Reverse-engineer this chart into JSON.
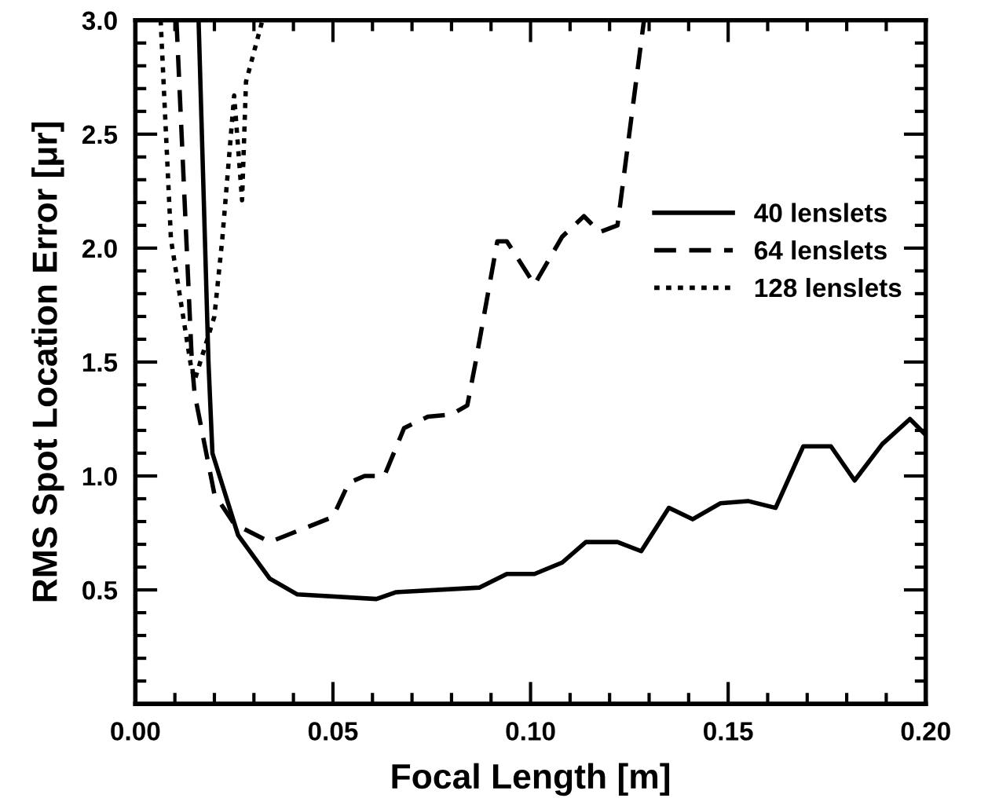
{
  "chart_data": {
    "type": "line",
    "xlabel": "Focal Length [m]",
    "ylabel": "RMS Spot Location Error [μr]",
    "xlim": [
      0.0,
      0.2
    ],
    "ylim": [
      0.0,
      3.0
    ],
    "xticks": [
      {
        "value": 0.0,
        "label": "0.00"
      },
      {
        "value": 0.05,
        "label": "0.05"
      },
      {
        "value": 0.1,
        "label": "0.10"
      },
      {
        "value": 0.15,
        "label": "0.15"
      },
      {
        "value": 0.2,
        "label": "0.20"
      }
    ],
    "yticks": [
      {
        "value": 0.0,
        "label": null
      },
      {
        "value": 0.5,
        "label": "0.5"
      },
      {
        "value": 1.0,
        "label": "1.0"
      },
      {
        "value": 1.5,
        "label": "1.5"
      },
      {
        "value": 2.0,
        "label": "2.0"
      },
      {
        "value": 2.5,
        "label": "2.5"
      },
      {
        "value": 3.0,
        "label": "3.0"
      }
    ],
    "grid": false,
    "legend": "right",
    "marker": "none",
    "series": [
      {
        "name": "40 lenslets",
        "color": "#000000",
        "line_style": "solid",
        "x": [
          0.016,
          0.0185,
          0.0195,
          0.026,
          0.034,
          0.041,
          0.061,
          0.066,
          0.087,
          0.094,
          0.101,
          0.108,
          0.114,
          0.122,
          0.128,
          0.135,
          0.141,
          0.148,
          0.155,
          0.162,
          0.169,
          0.176,
          0.182,
          0.189,
          0.196,
          0.2
        ],
        "values": [
          3.0,
          1.5,
          1.1,
          0.74,
          0.55,
          0.48,
          0.46,
          0.49,
          0.51,
          0.57,
          0.57,
          0.62,
          0.71,
          0.71,
          0.67,
          0.86,
          0.81,
          0.88,
          0.89,
          0.86,
          1.13,
          1.13,
          0.98,
          1.14,
          1.25,
          1.18
        ]
      },
      {
        "name": "64 lenslets",
        "color": "#000000",
        "line_style": "dashed",
        "x": [
          0.0104,
          0.0143,
          0.015,
          0.02,
          0.025,
          0.034,
          0.05,
          0.054,
          0.058,
          0.063,
          0.068,
          0.074,
          0.08,
          0.084,
          0.086,
          0.0916,
          0.094,
          0.101,
          0.108,
          0.1135,
          0.1175,
          0.122,
          0.1287
        ],
        "values": [
          3.0,
          1.5,
          1.36,
          0.92,
          0.79,
          0.71,
          0.82,
          0.97,
          1.0,
          1.0,
          1.21,
          1.26,
          1.27,
          1.31,
          1.49,
          2.03,
          2.03,
          1.84,
          2.05,
          2.14,
          2.07,
          2.1,
          3.0
        ]
      },
      {
        "name": "128 lenslets",
        "color": "#000000",
        "line_style": "dotted",
        "x": [
          0.0064,
          0.009,
          0.014,
          0.015,
          0.02,
          0.022,
          0.025,
          0.027,
          0.028,
          0.03,
          0.032
        ],
        "values": [
          3.0,
          2.04,
          1.49,
          1.42,
          1.7,
          2.04,
          2.67,
          2.21,
          2.73,
          2.86,
          2.99
        ]
      }
    ]
  }
}
